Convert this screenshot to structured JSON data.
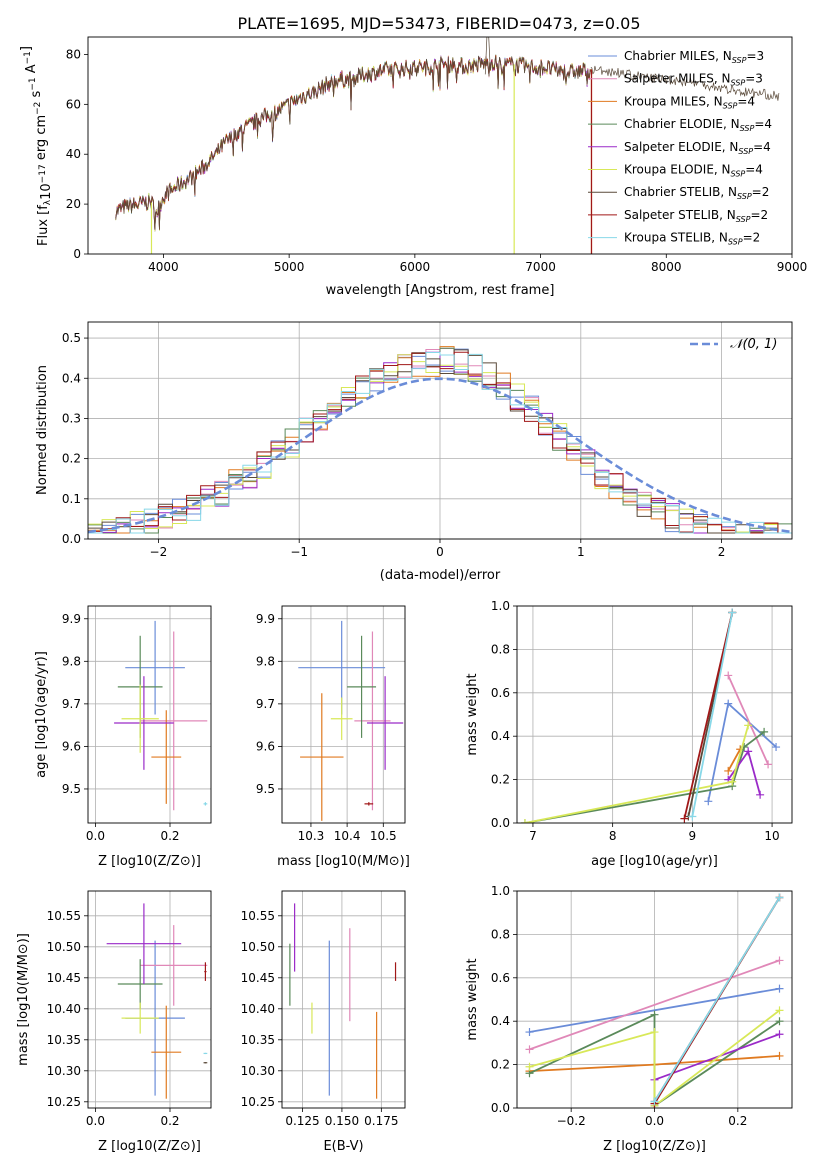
{
  "figure": {
    "title": "PLATE=1695, MJD=53473, FIBERID=0473, z=0.05"
  },
  "colors": {
    "chabrier_miles": "#6a8cd8",
    "salpeter_miles": "#e088b8",
    "kroupa_miles": "#e07a20",
    "chabrier_elodie": "#5a8a5a",
    "salpeter_elodie": "#9a2ac8",
    "kroupa_elodie": "#d8e858",
    "chabrier_stelib": "#5a4a3a",
    "salpeter_stelib": "#a01818",
    "kroupa_stelib": "#88d8e8",
    "normal_curve": "#6a8cd8",
    "grid": "#b0b0b0"
  },
  "chart_data": [
    {
      "id": "spectrum",
      "type": "line",
      "xlabel": "wavelength [Angstrom, rest frame]",
      "ylabel": "Flux [f_λ 10^-17 erg cm^-2 s^-1 A^-1]",
      "xlim": [
        3400,
        9000
      ],
      "ylim": [
        0,
        87
      ],
      "xticks": [
        "4000",
        "5000",
        "6000",
        "7000",
        "8000",
        "9000"
      ],
      "yticks": [
        "0",
        "20",
        "40",
        "60",
        "80"
      ],
      "grid": false,
      "legend_position": "top-right",
      "legend": [
        {
          "label": "Chabrier MILES, N",
          "sub": "SSP",
          "suffix": "=3",
          "color_key": "chabrier_miles"
        },
        {
          "label": "Salpeter MILES, N",
          "sub": "SSP",
          "suffix": "=3",
          "color_key": "salpeter_miles"
        },
        {
          "label": "Kroupa MILES, N",
          "sub": "SSP",
          "suffix": "=4",
          "color_key": "kroupa_miles"
        },
        {
          "label": "Chabrier ELODIE, N",
          "sub": "SSP",
          "suffix": "=4",
          "color_key": "chabrier_elodie"
        },
        {
          "label": "Salpeter ELODIE, N",
          "sub": "SSP",
          "suffix": "=4",
          "color_key": "salpeter_elodie"
        },
        {
          "label": "Kroupa ELODIE, N",
          "sub": "SSP",
          "suffix": "=4",
          "color_key": "kroupa_elodie"
        },
        {
          "label": "Chabrier STELIB, N",
          "sub": "SSP",
          "suffix": "=2",
          "color_key": "chabrier_stelib"
        },
        {
          "label": "Salpeter STELIB, N",
          "sub": "SSP",
          "suffix": "=2",
          "color_key": "salpeter_stelib"
        },
        {
          "label": "Kroupa STELIB, N",
          "sub": "SSP",
          "suffix": "=2",
          "color_key": "kroupa_stelib"
        }
      ],
      "continuum": [
        [
          3620,
          17
        ],
        [
          3700,
          19
        ],
        [
          3800,
          20
        ],
        [
          3900,
          21
        ],
        [
          3950,
          17
        ],
        [
          4000,
          23
        ],
        [
          4100,
          27
        ],
        [
          4200,
          30
        ],
        [
          4300,
          34
        ],
        [
          4400,
          39
        ],
        [
          4500,
          45
        ],
        [
          4600,
          49
        ],
        [
          4700,
          52
        ],
        [
          4800,
          55
        ],
        [
          4900,
          57
        ],
        [
          5000,
          60
        ],
        [
          5100,
          63
        ],
        [
          5200,
          65
        ],
        [
          5300,
          68
        ],
        [
          5400,
          70
        ],
        [
          5500,
          70
        ],
        [
          5600,
          72
        ],
        [
          5700,
          73
        ],
        [
          5800,
          74
        ],
        [
          5900,
          74
        ],
        [
          6000,
          75
        ],
        [
          6100,
          75
        ],
        [
          6200,
          76
        ],
        [
          6300,
          76
        ],
        [
          6400,
          75
        ],
        [
          6500,
          76
        ],
        [
          6600,
          77
        ],
        [
          6700,
          76
        ],
        [
          6800,
          76
        ],
        [
          6900,
          75
        ],
        [
          7000,
          75
        ],
        [
          7100,
          74
        ],
        [
          7200,
          73
        ],
        [
          7300,
          73
        ],
        [
          7400,
          74
        ]
      ],
      "stelib_extension": [
        [
          7400,
          74
        ],
        [
          7600,
          73
        ],
        [
          7800,
          71
        ],
        [
          8000,
          70
        ],
        [
          8200,
          69
        ],
        [
          8400,
          67
        ],
        [
          8600,
          65
        ],
        [
          8800,
          64
        ],
        [
          8900,
          63
        ]
      ]
    },
    {
      "id": "residuals",
      "type": "histogram",
      "xlabel": "(data-model)/error",
      "ylabel": "Normed distribution",
      "xlim": [
        -2.5,
        2.5
      ],
      "ylim": [
        0,
        0.54
      ],
      "xticks": [
        "−2",
        "−1",
        "0",
        "1",
        "2"
      ],
      "yticks": [
        "0.0",
        "0.1",
        "0.2",
        "0.3",
        "0.4",
        "0.5"
      ],
      "grid": true,
      "legend_position": "top-right",
      "legend": [
        {
          "label": "N(0, 1)",
          "color_key": "normal_curve",
          "style": "dashed"
        }
      ],
      "bin_width": 0.1
    },
    {
      "id": "age_vs_z",
      "type": "errorbar",
      "xlabel": "Z [log10(Z/Z⊙)]",
      "ylabel": "age [log10(age/yr)]",
      "xlim": [
        -0.02,
        0.31
      ],
      "ylim": [
        9.42,
        9.93
      ],
      "xticks": [
        "0.0",
        "0.2"
      ],
      "yticks": [
        "9.5",
        "9.6",
        "9.7",
        "9.8",
        "9.9"
      ],
      "grid": true,
      "points": [
        {
          "color_key": "chabrier_miles",
          "x": 0.16,
          "xerr": 0.08,
          "y": 9.785,
          "yerr": 0.11
        },
        {
          "color_key": "salpeter_miles",
          "x": 0.21,
          "xerr": 0.09,
          "y": 9.66,
          "yerr": 0.21
        },
        {
          "color_key": "kroupa_miles",
          "x": 0.19,
          "xerr": 0.04,
          "y": 9.575,
          "yerr": 0.11
        },
        {
          "color_key": "chabrier_elodie",
          "x": 0.12,
          "xerr": 0.06,
          "y": 9.74,
          "yerr": 0.12
        },
        {
          "color_key": "salpeter_elodie",
          "x": 0.13,
          "xerr": 0.08,
          "y": 9.655,
          "yerr": 0.11
        },
        {
          "color_key": "kroupa_elodie",
          "x": 0.12,
          "xerr": 0.05,
          "y": 9.665,
          "yerr": 0.08
        },
        {
          "color_key": "kroupa_stelib",
          "x": 0.295,
          "xerr": 0.005,
          "y": 9.465,
          "yerr": 0.004
        }
      ]
    },
    {
      "id": "age_vs_mass",
      "type": "errorbar",
      "xlabel": "mass [log10(M/M⊙)]",
      "ylabel": "",
      "xlim": [
        10.22,
        10.56
      ],
      "ylim": [
        9.42,
        9.93
      ],
      "xticks": [
        "10.3",
        "10.4",
        "10.5"
      ],
      "yticks": [
        "9.5",
        "9.6",
        "9.7",
        "9.8",
        "9.9"
      ],
      "grid": true,
      "points": [
        {
          "color_key": "chabrier_miles",
          "x": 10.385,
          "xerr": 0.12,
          "y": 9.785,
          "yerr": 0.11
        },
        {
          "color_key": "salpeter_miles",
          "x": 10.47,
          "xerr": 0.05,
          "y": 9.66,
          "yerr": 0.21
        },
        {
          "color_key": "kroupa_miles",
          "x": 10.33,
          "xerr": 0.06,
          "y": 9.575,
          "yerr": 0.15
        },
        {
          "color_key": "chabrier_elodie",
          "x": 10.44,
          "xerr": 0.04,
          "y": 9.74,
          "yerr": 0.12
        },
        {
          "color_key": "salpeter_elodie",
          "x": 10.505,
          "xerr": 0.05,
          "y": 9.655,
          "yerr": 0.11
        },
        {
          "color_key": "kroupa_elodie",
          "x": 10.385,
          "xerr": 0.03,
          "y": 9.665,
          "yerr": 0.05
        },
        {
          "color_key": "salpeter_stelib",
          "x": 10.46,
          "xerr": 0.012,
          "y": 9.465,
          "yerr": 0.004
        }
      ]
    },
    {
      "id": "mass_weight_vs_age",
      "type": "line",
      "xlabel": "age [log10(age/yr)]",
      "ylabel": "mass weight",
      "xlim": [
        6.8,
        10.25
      ],
      "ylim": [
        0,
        1.0
      ],
      "xticks": [
        "7",
        "8",
        "9",
        "10"
      ],
      "yticks": [
        "0.0",
        "0.2",
        "0.4",
        "0.6",
        "0.8",
        "1.0"
      ],
      "grid": true,
      "series": [
        {
          "color_key": "chabrier_miles",
          "x": [
            9.2,
            9.45,
            10.05
          ],
          "y": [
            0.1,
            0.55,
            0.35
          ]
        },
        {
          "color_key": "salpeter_miles",
          "x": [
            9.45,
            9.95
          ],
          "y": [
            0.68,
            0.27
          ]
        },
        {
          "color_key": "kroupa_miles",
          "x": [
            9.45,
            9.6
          ],
          "y": [
            0.24,
            0.34
          ]
        },
        {
          "color_key": "chabrier_elodie",
          "x": [
            6.9,
            9.5,
            9.65,
            9.9
          ],
          "y": [
            0.0,
            0.17,
            0.35,
            0.42
          ]
        },
        {
          "color_key": "salpeter_elodie",
          "x": [
            9.45,
            9.7,
            9.85
          ],
          "y": [
            0.2,
            0.33,
            0.13
          ]
        },
        {
          "color_key": "kroupa_elodie",
          "x": [
            6.9,
            9.5,
            9.7
          ],
          "y": [
            0.0,
            0.19,
            0.45
          ]
        },
        {
          "color_key": "chabrier_stelib",
          "x": [
            8.95,
            9.5
          ],
          "y": [
            0.03,
            0.97
          ]
        },
        {
          "color_key": "salpeter_stelib",
          "x": [
            8.9,
            9.5
          ],
          "y": [
            0.02,
            0.97
          ]
        },
        {
          "color_key": "kroupa_stelib",
          "x": [
            9.0,
            9.5
          ],
          "y": [
            0.03,
            0.97
          ]
        }
      ]
    },
    {
      "id": "mass_vs_z",
      "type": "errorbar",
      "xlabel": "Z [log10(Z/Z⊙)]",
      "ylabel": "mass [log10(M/M⊙)]",
      "xlim": [
        -0.02,
        0.31
      ],
      "ylim": [
        10.24,
        10.59
      ],
      "xticks": [
        "0.0",
        "0.2"
      ],
      "yticks": [
        "10.25",
        "10.30",
        "10.35",
        "10.40",
        "10.45",
        "10.50",
        "10.55"
      ],
      "grid": true,
      "points": [
        {
          "color_key": "chabrier_miles",
          "x": 0.16,
          "xerr": 0.08,
          "y": 10.385,
          "yerr": 0.125
        },
        {
          "color_key": "salpeter_miles",
          "x": 0.21,
          "xerr": 0.09,
          "y": 10.47,
          "yerr": 0.065
        },
        {
          "color_key": "kroupa_miles",
          "x": 0.19,
          "xerr": 0.04,
          "y": 10.33,
          "yerr": 0.075
        },
        {
          "color_key": "chabrier_elodie",
          "x": 0.12,
          "xerr": 0.06,
          "y": 10.44,
          "yerr": 0.04
        },
        {
          "color_key": "salpeter_elodie",
          "x": 0.13,
          "xerr": 0.1,
          "y": 10.505,
          "yerr": 0.065
        },
        {
          "color_key": "kroupa_elodie",
          "x": 0.12,
          "xerr": 0.05,
          "y": 10.385,
          "yerr": 0.025
        },
        {
          "color_key": "salpeter_stelib",
          "x": 0.295,
          "xerr": 0.003,
          "y": 10.46,
          "yerr": 0.015
        },
        {
          "color_key": "kroupa_stelib",
          "x": 0.295,
          "xerr": 0.005,
          "y": 10.328,
          "yerr": 0.001
        },
        {
          "color_key": "chabrier_stelib",
          "x": 0.295,
          "xerr": 0.005,
          "y": 10.313,
          "yerr": 0.001
        }
      ]
    },
    {
      "id": "mass_vs_ebv",
      "type": "errorbar",
      "xlabel": "E(B-V)",
      "ylabel": "",
      "xlim": [
        0.112,
        0.19
      ],
      "ylim": [
        10.24,
        10.59
      ],
      "xticks": [
        "0.125",
        "0.150",
        "0.175"
      ],
      "yticks": [
        "10.25",
        "10.30",
        "10.35",
        "10.40",
        "10.45",
        "10.50",
        "10.55"
      ],
      "grid": true,
      "points": [
        {
          "color_key": "chabrier_miles",
          "x": 0.142,
          "xerr": 0,
          "y": 10.385,
          "yerr": 0.125
        },
        {
          "color_key": "salpeter_miles",
          "x": 0.155,
          "xerr": 0,
          "y": 10.455,
          "yerr": 0.075
        },
        {
          "color_key": "kroupa_miles",
          "x": 0.172,
          "xerr": 0,
          "y": 10.325,
          "yerr": 0.07
        },
        {
          "color_key": "chabrier_elodie",
          "x": 0.117,
          "xerr": 0,
          "y": 10.455,
          "yerr": 0.05
        },
        {
          "color_key": "salpeter_elodie",
          "x": 0.12,
          "xerr": 0,
          "y": 10.515,
          "yerr": 0.055
        },
        {
          "color_key": "kroupa_elodie",
          "x": 0.131,
          "xerr": 0,
          "y": 10.385,
          "yerr": 0.025
        },
        {
          "color_key": "salpeter_stelib",
          "x": 0.184,
          "xerr": 0,
          "y": 10.46,
          "yerr": 0.015
        }
      ]
    },
    {
      "id": "mass_weight_vs_z",
      "type": "line",
      "xlabel": "Z [log10(Z/Z⊙)]",
      "ylabel": "mass weight",
      "xlim": [
        -0.33,
        0.33
      ],
      "ylim": [
        0,
        1.0
      ],
      "xticks": [
        "−0.2",
        "0.0",
        "0.2"
      ],
      "yticks": [
        "0.0",
        "0.2",
        "0.4",
        "0.6",
        "0.8",
        "1.0"
      ],
      "grid": true,
      "series": [
        {
          "color_key": "chabrier_miles",
          "x": [
            -0.3,
            0.3
          ],
          "y": [
            0.35,
            0.55
          ]
        },
        {
          "color_key": "salpeter_miles",
          "x": [
            -0.3,
            0.3
          ],
          "y": [
            0.27,
            0.68
          ]
        },
        {
          "color_key": "kroupa_miles",
          "x": [
            -0.3,
            0.0,
            0.3
          ],
          "y": [
            0.17,
            0.2,
            0.24
          ]
        },
        {
          "color_key": "chabrier_elodie",
          "x": [
            -0.3,
            0.0,
            0.0,
            0.3
          ],
          "y": [
            0.16,
            0.43,
            0.01,
            0.4
          ]
        },
        {
          "color_key": "salpeter_elodie",
          "x": [
            0.0,
            0.3
          ],
          "y": [
            0.13,
            0.34
          ]
        },
        {
          "color_key": "kroupa_elodie",
          "x": [
            -0.3,
            0.0,
            0.0,
            0.3
          ],
          "y": [
            0.19,
            0.35,
            0.01,
            0.45
          ]
        },
        {
          "color_key": "chabrier_stelib",
          "x": [
            0.0,
            0.3
          ],
          "y": [
            0.03,
            0.97
          ]
        },
        {
          "color_key": "salpeter_stelib",
          "x": [
            0.0,
            0.3
          ],
          "y": [
            0.02,
            0.97
          ]
        },
        {
          "color_key": "kroupa_stelib",
          "x": [
            0.0,
            0.3
          ],
          "y": [
            0.03,
            0.97
          ]
        }
      ]
    }
  ]
}
